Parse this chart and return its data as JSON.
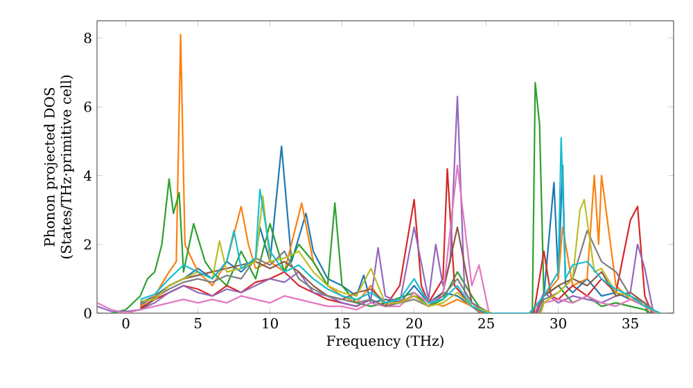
{
  "chart_data": {
    "type": "line",
    "xlabel": "Frequency (THz)",
    "ylabel": "Phonon projected DOS (States/THz·primitive cell)",
    "xlim": [
      -2,
      38
    ],
    "ylim": [
      0,
      8.5
    ],
    "xticks": [
      0,
      5,
      10,
      15,
      20,
      25,
      30,
      35
    ],
    "yticks": [
      0,
      2,
      4,
      6,
      8
    ],
    "grid": false,
    "marker": "none",
    "line_style": "solid",
    "series": [
      {
        "color": "#1f77b4",
        "x": [
          1,
          2,
          3,
          4,
          5,
          6,
          7,
          8,
          9,
          9.3,
          10,
          10.8,
          11.5,
          12.5,
          13,
          14,
          15,
          16,
          16.5,
          17,
          18,
          19,
          20,
          21,
          22,
          23,
          24,
          24.6,
          26,
          28.0,
          29,
          29.7,
          30,
          30.3,
          30.5,
          31,
          32,
          33,
          34,
          35,
          36,
          36.2
        ],
        "values": [
          0.3,
          0.5,
          0.8,
          1.0,
          1.3,
          1.0,
          1.5,
          1.2,
          1.6,
          2.5,
          1.5,
          4.85,
          1.5,
          2.9,
          1.8,
          1.0,
          0.8,
          0.5,
          1.1,
          0.3,
          0.4,
          0.3,
          0.8,
          0.3,
          0.6,
          0.5,
          0.2,
          0,
          null,
          0,
          0.5,
          3.8,
          1.0,
          4.3,
          0.8,
          0.6,
          1.0,
          0.5,
          0.6,
          0.4,
          0.3,
          0
        ]
      },
      {
        "color": "#ff7f0e",
        "x": [
          1,
          2,
          3,
          3.5,
          3.8,
          4.1,
          5,
          6,
          7,
          8,
          8.5,
          9,
          10,
          11,
          12.2,
          13,
          14,
          15,
          16,
          17,
          18,
          20,
          22,
          23,
          24,
          24.7,
          26,
          28.1,
          29,
          30,
          30.3,
          31,
          32,
          32.5,
          32.8,
          33,
          34,
          35,
          36,
          36.3
        ],
        "values": [
          0.2,
          0.5,
          1.2,
          1.5,
          8.1,
          2.0,
          1.2,
          0.8,
          1.5,
          3.1,
          2.0,
          1.3,
          1.5,
          1.2,
          3.2,
          1.5,
          0.8,
          0.5,
          0.3,
          0.8,
          0.2,
          0.5,
          0.2,
          0.4,
          0.2,
          0,
          null,
          0,
          0.5,
          1.0,
          2.5,
          0.8,
          1.0,
          4.0,
          2.0,
          4.0,
          0.8,
          0.4,
          0.3,
          0
        ]
      },
      {
        "color": "#2ca02c",
        "x": [
          -1,
          0,
          1,
          1.5,
          2,
          2.5,
          3,
          3.3,
          3.7,
          4,
          4.7,
          5.5,
          6,
          7,
          8,
          9,
          10,
          11,
          12,
          13,
          14,
          14.5,
          15,
          16,
          17,
          18,
          20,
          21,
          22,
          23,
          24,
          24.8,
          26,
          28.2,
          28.4,
          28.7,
          29,
          30,
          31,
          32,
          33,
          34,
          35,
          36,
          36.4
        ],
        "values": [
          0,
          0.1,
          0.5,
          1.0,
          1.2,
          2.0,
          3.9,
          2.9,
          3.5,
          1.2,
          2.6,
          1.5,
          1.2,
          0.8,
          1.8,
          1.0,
          2.6,
          1.2,
          2.0,
          1.5,
          0.8,
          3.2,
          0.8,
          0.3,
          0.2,
          0.3,
          0.6,
          0.2,
          0.4,
          1.2,
          0.5,
          0,
          null,
          0,
          6.7,
          5.5,
          0.5,
          0.8,
          0.3,
          0.5,
          0.2,
          0.3,
          0.2,
          0.1,
          0
        ]
      },
      {
        "color": "#d62728",
        "x": [
          1,
          2,
          3,
          4,
          5,
          6,
          7,
          8,
          9,
          10,
          11,
          12,
          13,
          14,
          15,
          16,
          17,
          18,
          19,
          20,
          20.5,
          21,
          22,
          22.3,
          22.8,
          24,
          24.9,
          26,
          28.3,
          29,
          29.5,
          30,
          31,
          32,
          33,
          34,
          35,
          35.5,
          36,
          36.5
        ],
        "values": [
          0.15,
          0.4,
          0.6,
          0.8,
          0.7,
          0.5,
          0.8,
          0.6,
          0.9,
          1.0,
          1.2,
          0.8,
          0.6,
          0.4,
          0.3,
          0.2,
          0.4,
          0.2,
          0.8,
          3.3,
          0.8,
          0.3,
          1.0,
          4.2,
          0.8,
          0.2,
          0,
          null,
          0,
          1.8,
          0.5,
          0.4,
          0.8,
          0.5,
          1.0,
          0.6,
          2.7,
          3.1,
          0.5,
          0
        ]
      },
      {
        "color": "#9467bd",
        "x": [
          -2,
          -1,
          0,
          1,
          2,
          3,
          4,
          5,
          6,
          7,
          8,
          9,
          10,
          11,
          12,
          13,
          14,
          15,
          16,
          17,
          17.5,
          18,
          19,
          20,
          21,
          21.5,
          22,
          22.5,
          23,
          23.5,
          24,
          25.0,
          26,
          28.4,
          29,
          30,
          31,
          32,
          33,
          34,
          35,
          35.5,
          36,
          36.6
        ],
        "values": [
          0.2,
          0.05,
          0.05,
          0.1,
          0.3,
          0.6,
          0.8,
          0.6,
          0.5,
          0.7,
          0.6,
          0.8,
          1.0,
          0.9,
          1.2,
          0.6,
          0.5,
          0.3,
          0.2,
          0.4,
          1.9,
          0.5,
          0.3,
          2.5,
          0.4,
          2.0,
          0.8,
          1.5,
          6.3,
          0.6,
          0.3,
          0,
          null,
          0,
          0.6,
          0.3,
          0.5,
          0.4,
          0.3,
          0.5,
          0.6,
          2.0,
          1.3,
          0
        ]
      },
      {
        "color": "#8c564b",
        "x": [
          1,
          2,
          3,
          4,
          5,
          6,
          7,
          8,
          9,
          10,
          11,
          12,
          13,
          14,
          15,
          16,
          17,
          18,
          19,
          20,
          21,
          22,
          23,
          24,
          25.1,
          26,
          28.5,
          29,
          30,
          31,
          32,
          33,
          34,
          35,
          36,
          36.7
        ],
        "values": [
          0.1,
          0.4,
          0.8,
          1.0,
          1.1,
          1.2,
          1.3,
          1.4,
          1.5,
          1.3,
          1.5,
          1.2,
          0.8,
          0.5,
          0.4,
          0.6,
          0.7,
          0.3,
          0.3,
          0.5,
          0.2,
          0.6,
          2.5,
          0.3,
          0,
          null,
          0,
          0.5,
          0.8,
          1.0,
          0.8,
          1.2,
          0.5,
          0.6,
          0.3,
          0
        ]
      },
      {
        "color": "#e377c2",
        "x": [
          -2,
          -1,
          0,
          1,
          2,
          3,
          4,
          5,
          6,
          7,
          8,
          9,
          10,
          11,
          12,
          13,
          14,
          15,
          16,
          17,
          18,
          19,
          20,
          21,
          22,
          23,
          24,
          24.5,
          25.2,
          26,
          28.6,
          29,
          30,
          31,
          32,
          33,
          34,
          35,
          36,
          36.8
        ],
        "values": [
          0.3,
          0.1,
          0,
          0.1,
          0.2,
          0.3,
          0.4,
          0.3,
          0.4,
          0.3,
          0.5,
          0.4,
          0.3,
          0.5,
          0.4,
          0.3,
          0.2,
          0.2,
          0.1,
          0.3,
          0.2,
          0.2,
          0.6,
          0.3,
          0.5,
          4.3,
          0.8,
          1.4,
          0,
          null,
          0,
          0.3,
          0.4,
          0.3,
          0.5,
          0.3,
          0.2,
          0.4,
          0.2,
          0
        ]
      },
      {
        "color": "#7f7f7f",
        "x": [
          1,
          2,
          3,
          4,
          5,
          6,
          7,
          8,
          9,
          10,
          11,
          12,
          13,
          14,
          15,
          16,
          17,
          18,
          19,
          20,
          21,
          22,
          23,
          24,
          25.3,
          26,
          28.7,
          29,
          30,
          31,
          32,
          33,
          34,
          35,
          36,
          36.9
        ],
        "values": [
          0.25,
          0.45,
          0.7,
          0.9,
          1.0,
          0.9,
          1.1,
          1.0,
          1.6,
          1.4,
          1.8,
          1.0,
          0.7,
          0.5,
          0.4,
          0.3,
          0.4,
          0.2,
          0.3,
          0.4,
          0.2,
          0.5,
          1.0,
          0.3,
          0,
          null,
          0,
          0.4,
          0.6,
          1.0,
          2.4,
          1.5,
          1.2,
          0.5,
          0.3,
          0
        ]
      },
      {
        "color": "#bcbd22",
        "x": [
          1,
          2,
          3,
          4,
          5,
          6,
          6.5,
          7,
          8,
          9,
          9.5,
          10,
          11,
          12,
          13,
          14,
          15,
          16,
          17,
          18,
          19,
          20,
          21,
          22,
          23,
          24,
          25.4,
          26,
          28.8,
          29,
          30,
          31,
          31.5,
          31.8,
          32.5,
          33,
          34,
          35,
          36,
          37.0
        ],
        "values": [
          0.35,
          0.4,
          0.8,
          1.0,
          1.2,
          1.0,
          2.1,
          1.2,
          1.3,
          1.5,
          3.4,
          1.5,
          1.6,
          1.8,
          1.2,
          0.8,
          0.6,
          0.5,
          1.3,
          0.3,
          0.3,
          0.5,
          0.2,
          0.3,
          0.6,
          0.2,
          0,
          null,
          0,
          0.3,
          0.6,
          1.0,
          3.0,
          3.3,
          1.2,
          1.3,
          0.6,
          0.5,
          0.2,
          0
        ]
      },
      {
        "color": "#17becf",
        "x": [
          1,
          2,
          3,
          4,
          5,
          6,
          7,
          7.5,
          8,
          9,
          9.3,
          10,
          11,
          12,
          13,
          14,
          15,
          16,
          17,
          18,
          19,
          20,
          21,
          22,
          23,
          24,
          25,
          28,
          29,
          30,
          30.2,
          30.5,
          31,
          32,
          33,
          34,
          35,
          36,
          37.1
        ],
        "values": [
          0.4,
          0.55,
          1.0,
          1.4,
          1.2,
          1.0,
          1.5,
          2.4,
          1.3,
          1.6,
          3.6,
          1.8,
          1.2,
          1.4,
          1.0,
          0.7,
          0.5,
          0.4,
          0.6,
          0.3,
          0.4,
          1.0,
          0.3,
          0.4,
          0.8,
          0.2,
          0,
          0,
          0.5,
          1.2,
          5.1,
          1.0,
          1.4,
          1.5,
          1.0,
          0.7,
          0.5,
          0.2,
          0
        ]
      }
    ]
  }
}
